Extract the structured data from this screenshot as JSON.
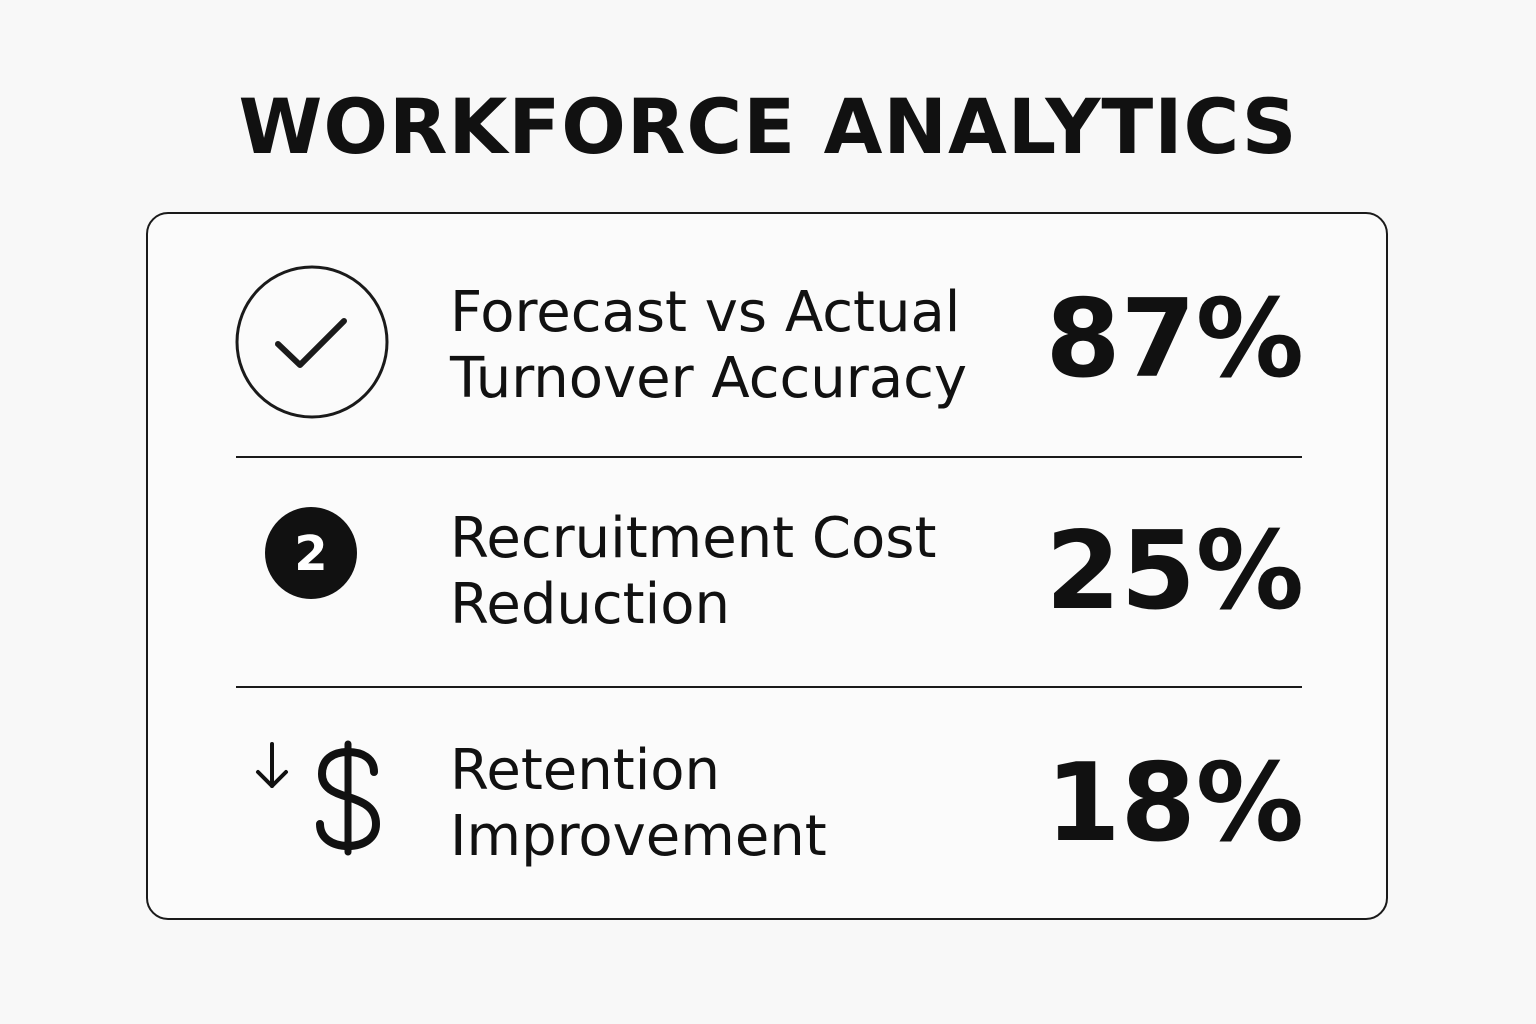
{
  "title": "WORKFORCE ANALYTICS",
  "metrics": [
    {
      "icon": "check-circle-icon",
      "label_line1": "Forecast vs Actual",
      "label_line2": "Turnover Accuracy",
      "value": "87%"
    },
    {
      "icon": "number-two-badge-icon",
      "badge_text": "2",
      "label_line1": "Recruitment Cost",
      "label_line2": "Reduction",
      "value": "25%"
    },
    {
      "icon": "down-arrow-dollar-icon",
      "label_line1": "Retention",
      "label_line2": "Improvement",
      "value": "18%"
    }
  ],
  "colors": {
    "background": "#f8f8f8",
    "foreground": "#111111"
  }
}
